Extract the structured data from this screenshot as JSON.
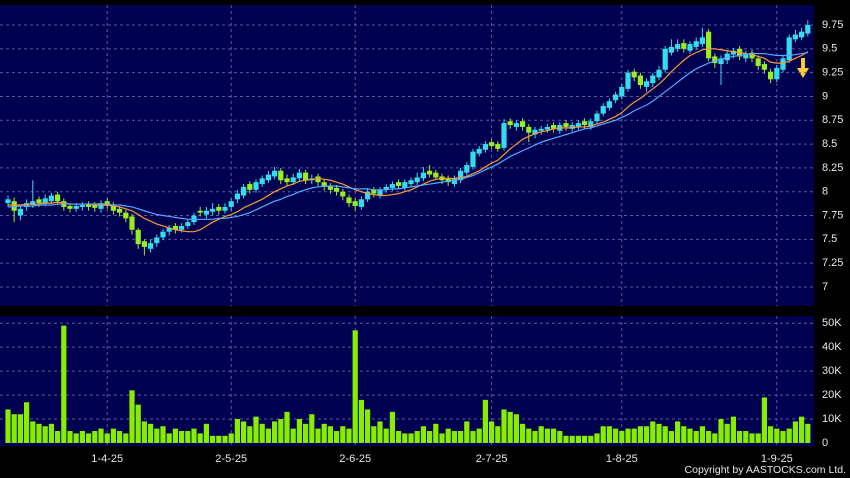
{
  "chart_data": {
    "type": "candlestick",
    "categories": [
      null,
      null,
      null,
      null,
      null,
      null,
      null,
      null,
      null,
      null,
      null,
      null,
      null,
      null,
      null,
      null,
      "1-4-25",
      null,
      null,
      null,
      null,
      null,
      null,
      null,
      null,
      null,
      null,
      null,
      null,
      null,
      null,
      null,
      null,
      null,
      null,
      null,
      "2-5-25",
      null,
      null,
      null,
      null,
      null,
      null,
      null,
      null,
      null,
      null,
      null,
      null,
      null,
      null,
      null,
      null,
      null,
      null,
      null,
      "2-6-25",
      null,
      null,
      null,
      null,
      null,
      null,
      null,
      null,
      null,
      null,
      null,
      null,
      null,
      null,
      null,
      null,
      null,
      null,
      null,
      null,
      null,
      "2-7-25",
      null,
      null,
      null,
      null,
      null,
      null,
      null,
      null,
      null,
      null,
      null,
      null,
      null,
      null,
      null,
      null,
      null,
      null,
      null,
      null,
      "1-8-25",
      null,
      null,
      null,
      null,
      null,
      null,
      null,
      null,
      null,
      null,
      null,
      null,
      null,
      null,
      null,
      null,
      null,
      null,
      null,
      null,
      null,
      null,
      null,
      null,
      "1-9-25",
      null,
      null,
      null,
      null,
      null
    ],
    "open": [
      7.88,
      7.9,
      7.75,
      7.84,
      7.86,
      7.92,
      7.88,
      7.9,
      7.97,
      7.9,
      7.85,
      7.82,
      7.84,
      7.87,
      7.86,
      7.82,
      7.9,
      7.86,
      7.82,
      7.78,
      7.74,
      7.6,
      7.48,
      7.4,
      7.46,
      7.52,
      7.58,
      7.64,
      7.6,
      7.64,
      7.68,
      7.8,
      7.76,
      7.79,
      7.84,
      7.8,
      7.84,
      7.92,
      7.96,
      8.08,
      8.02,
      8.08,
      8.12,
      8.16,
      8.22,
      8.14,
      8.1,
      8.14,
      8.2,
      8.12,
      8.16,
      8.1,
      8.06,
      8.04,
      8.0,
      7.94,
      7.9,
      7.84,
      7.92,
      8.02,
      7.96,
      8.02,
      8.04,
      8.1,
      8.04,
      8.08,
      8.1,
      8.14,
      8.22,
      8.2,
      8.16,
      8.14,
      8.08,
      8.12,
      8.2,
      8.26,
      8.4,
      8.44,
      8.52,
      8.5,
      8.46,
      8.74,
      8.68,
      8.74,
      8.68,
      8.6,
      8.64,
      8.65,
      8.7,
      8.64,
      8.72,
      8.66,
      8.68,
      8.74,
      8.68,
      8.74,
      8.82,
      8.88,
      8.96,
      9.0,
      9.08,
      9.26,
      9.22,
      9.1,
      9.14,
      9.2,
      9.28,
      9.46,
      9.5,
      9.56,
      9.48,
      9.52,
      9.55,
      9.68,
      9.42,
      9.34,
      9.38,
      9.44,
      9.5,
      9.4,
      9.46,
      9.4,
      9.34,
      9.26,
      9.18,
      9.28,
      9.38,
      9.6,
      9.62,
      9.66
    ],
    "high": [
      7.96,
      7.94,
      7.86,
      7.92,
      8.12,
      7.95,
      7.97,
      7.99,
      8.0,
      7.93,
      7.88,
      7.88,
      7.89,
      7.9,
      7.89,
      7.91,
      7.93,
      7.89,
      7.85,
      7.81,
      7.77,
      7.62,
      7.5,
      7.5,
      7.55,
      7.61,
      7.65,
      7.67,
      7.67,
      7.71,
      7.78,
      7.84,
      7.84,
      7.88,
      7.87,
      7.88,
      7.93,
      8.02,
      8.08,
      8.11,
      8.13,
      8.17,
      8.22,
      8.26,
      8.25,
      8.18,
      8.19,
      8.24,
      8.23,
      8.18,
      8.19,
      8.13,
      8.09,
      8.07,
      8.03,
      7.97,
      7.93,
      7.95,
      8.04,
      8.05,
      8.05,
      8.08,
      8.11,
      8.13,
      8.13,
      8.15,
      8.2,
      8.26,
      8.28,
      8.23,
      8.19,
      8.17,
      8.17,
      8.25,
      8.31,
      8.45,
      8.48,
      8.53,
      8.55,
      8.53,
      8.76,
      8.77,
      8.75,
      8.77,
      8.71,
      8.68,
      8.69,
      8.71,
      8.73,
      8.73,
      8.75,
      8.73,
      8.75,
      8.77,
      8.77,
      8.85,
      8.93,
      8.98,
      9.05,
      9.13,
      9.28,
      9.29,
      9.25,
      9.19,
      9.25,
      9.32,
      9.53,
      9.6,
      9.6,
      9.6,
      9.58,
      9.62,
      9.72,
      9.71,
      9.45,
      9.43,
      9.48,
      9.51,
      9.53,
      9.48,
      9.49,
      9.43,
      9.37,
      9.29,
      9.33,
      9.43,
      9.65,
      9.7,
      9.72,
      9.8
    ],
    "low": [
      7.84,
      7.68,
      7.7,
      7.8,
      7.83,
      7.84,
      7.85,
      7.87,
      7.86,
      7.8,
      7.78,
      7.79,
      7.8,
      7.8,
      7.79,
      7.78,
      7.82,
      7.76,
      7.74,
      7.68,
      7.55,
      7.4,
      7.33,
      7.36,
      7.42,
      7.49,
      7.54,
      7.56,
      7.57,
      7.61,
      7.65,
      7.74,
      7.72,
      7.75,
      7.76,
      7.77,
      7.8,
      7.88,
      7.93,
      7.98,
      7.99,
      8.05,
      8.09,
      8.13,
      8.08,
      8.06,
      8.07,
      8.1,
      8.08,
      8.08,
      8.06,
      8.01,
      7.98,
      7.96,
      7.91,
      7.84,
      7.8,
      7.81,
      7.89,
      7.94,
      7.93,
      7.99,
      8.01,
      8.03,
      8.01,
      8.05,
      8.07,
      8.11,
      8.15,
      8.12,
      8.08,
      8.06,
      8.05,
      8.09,
      8.17,
      8.23,
      8.37,
      8.41,
      8.45,
      8.42,
      8.43,
      8.66,
      8.64,
      8.64,
      8.52,
      8.56,
      8.6,
      8.62,
      8.62,
      8.61,
      8.64,
      8.63,
      8.65,
      8.66,
      8.65,
      8.71,
      8.79,
      8.85,
      8.93,
      8.97,
      9.05,
      9.16,
      9.08,
      9.05,
      9.1,
      9.17,
      9.25,
      9.43,
      9.47,
      9.46,
      9.45,
      9.49,
      9.52,
      9.37,
      9.3,
      9.12,
      9.34,
      9.4,
      9.38,
      9.36,
      9.36,
      9.28,
      9.24,
      9.14,
      9.15,
      9.25,
      9.35,
      9.57,
      9.59,
      9.63
    ],
    "close": [
      7.92,
      7.8,
      7.82,
      7.88,
      7.9,
      7.88,
      7.93,
      7.96,
      7.9,
      7.84,
      7.82,
      7.85,
      7.86,
      7.84,
      7.83,
      7.88,
      7.85,
      7.8,
      7.78,
      7.72,
      7.6,
      7.45,
      7.42,
      7.46,
      7.52,
      7.58,
      7.62,
      7.6,
      7.64,
      7.68,
      7.75,
      7.78,
      7.8,
      7.82,
      7.8,
      7.84,
      7.9,
      7.98,
      8.05,
      8.02,
      8.1,
      8.14,
      8.18,
      8.22,
      8.12,
      8.1,
      8.15,
      8.2,
      8.12,
      8.14,
      8.1,
      8.05,
      8.02,
      8.0,
      7.95,
      7.88,
      7.85,
      7.92,
      8.0,
      7.98,
      8.02,
      8.05,
      8.08,
      8.06,
      8.1,
      8.12,
      8.15,
      8.2,
      8.18,
      8.15,
      8.12,
      8.1,
      8.14,
      8.22,
      8.28,
      8.42,
      8.45,
      8.5,
      8.48,
      8.45,
      8.72,
      8.7,
      8.72,
      8.68,
      8.62,
      8.65,
      8.66,
      8.68,
      8.66,
      8.7,
      8.68,
      8.7,
      8.72,
      8.7,
      8.74,
      8.82,
      8.9,
      8.95,
      9.02,
      9.1,
      9.25,
      9.2,
      9.12,
      9.16,
      9.22,
      9.28,
      9.5,
      9.52,
      9.55,
      9.5,
      9.55,
      9.58,
      9.62,
      9.4,
      9.35,
      9.4,
      9.45,
      9.48,
      9.42,
      9.45,
      9.4,
      9.32,
      9.28,
      9.18,
      9.3,
      9.4,
      9.62,
      9.65,
      9.68,
      9.75
    ],
    "up_color": "#33ddee",
    "down_color": "#99ee22",
    "moving_averages": [
      {
        "color": "#ff9933",
        "values": [
          7.86,
          7.86,
          7.86,
          7.87,
          7.87,
          7.87,
          7.88,
          7.88,
          7.89,
          7.88,
          7.87,
          7.87,
          7.87,
          7.87,
          7.86,
          7.86,
          7.86,
          7.85,
          7.84,
          7.82,
          7.8,
          7.76,
          7.72,
          7.69,
          7.66,
          7.64,
          7.62,
          7.6,
          7.59,
          7.58,
          7.58,
          7.6,
          7.64,
          7.68,
          7.71,
          7.74,
          7.76,
          7.79,
          7.83,
          7.86,
          7.89,
          7.92,
          7.96,
          8.0,
          8.03,
          8.06,
          8.08,
          8.11,
          8.12,
          8.13,
          8.14,
          8.13,
          8.12,
          8.1,
          8.08,
          8.05,
          8.02,
          8.0,
          7.98,
          7.97,
          7.96,
          7.96,
          7.97,
          7.98,
          8.0,
          8.02,
          8.05,
          8.08,
          8.11,
          8.13,
          8.14,
          8.14,
          8.14,
          8.15,
          8.16,
          8.19,
          8.22,
          8.26,
          8.3,
          8.33,
          8.39,
          8.45,
          8.5,
          8.55,
          8.58,
          8.61,
          8.63,
          8.64,
          8.66,
          8.67,
          8.67,
          8.67,
          8.68,
          8.68,
          8.69,
          8.71,
          8.73,
          8.76,
          8.79,
          8.83,
          8.89,
          8.94,
          8.98,
          9.03,
          9.08,
          9.13,
          9.19,
          9.26,
          9.32,
          9.38,
          9.43,
          9.46,
          9.49,
          9.5,
          9.5,
          9.49,
          9.48,
          9.47,
          9.46,
          9.45,
          9.44,
          9.42,
          9.4,
          9.36,
          9.35,
          9.35,
          9.37,
          9.4,
          9.43,
          9.47
        ]
      },
      {
        "color": "#55aaff",
        "values": [
          7.84,
          7.84,
          7.85,
          7.85,
          7.85,
          7.86,
          7.86,
          7.86,
          7.87,
          7.87,
          7.87,
          7.87,
          7.87,
          7.87,
          7.87,
          7.87,
          7.87,
          7.86,
          7.86,
          7.85,
          7.84,
          7.82,
          7.8,
          7.78,
          7.76,
          7.75,
          7.74,
          7.73,
          7.72,
          7.71,
          7.71,
          7.71,
          7.71,
          7.71,
          7.72,
          7.72,
          7.73,
          7.74,
          7.76,
          7.78,
          7.81,
          7.84,
          7.87,
          7.9,
          7.92,
          7.95,
          7.97,
          8.0,
          8.02,
          8.04,
          8.05,
          8.06,
          8.06,
          8.06,
          8.05,
          8.04,
          8.03,
          8.03,
          8.03,
          8.02,
          8.02,
          8.02,
          8.03,
          8.03,
          8.04,
          8.05,
          8.06,
          8.07,
          8.08,
          8.09,
          8.1,
          8.11,
          8.12,
          8.13,
          8.15,
          8.17,
          8.2,
          8.23,
          8.26,
          8.29,
          8.33,
          8.37,
          8.4,
          8.43,
          8.46,
          8.49,
          8.52,
          8.54,
          8.56,
          8.58,
          8.6,
          8.62,
          8.64,
          8.66,
          8.67,
          8.69,
          8.71,
          8.73,
          8.75,
          8.78,
          8.81,
          8.85,
          8.88,
          8.91,
          8.95,
          9.0,
          9.05,
          9.1,
          9.15,
          9.2,
          9.25,
          9.29,
          9.32,
          9.35,
          9.37,
          9.39,
          9.41,
          9.42,
          9.43,
          9.44,
          9.45,
          9.45,
          9.45,
          9.44,
          9.43,
          9.43,
          9.43,
          9.44,
          9.45,
          9.46
        ]
      }
    ],
    "ylim": [
      6.8,
      9.96
    ],
    "yticks": [
      7,
      7.25,
      7.5,
      7.75,
      8,
      8.25,
      8.5,
      8.75,
      9,
      9.25,
      9.5,
      9.75
    ],
    "volume": {
      "color": "#88ee00",
      "values": [
        14000,
        12000,
        12000,
        17000,
        9000,
        8000,
        7000,
        8000,
        5000,
        49000,
        5000,
        4000,
        5000,
        4000,
        5000,
        6000,
        4000,
        6000,
        5000,
        4000,
        22000,
        16000,
        9000,
        8000,
        6000,
        7000,
        4000,
        6000,
        5000,
        5000,
        6000,
        4000,
        8000,
        3000,
        3000,
        3000,
        4000,
        10000,
        9000,
        7000,
        11000,
        8000,
        6000,
        9000,
        10000,
        13000,
        6000,
        10000,
        8000,
        12000,
        6000,
        8000,
        7000,
        5000,
        7000,
        6000,
        47000,
        18000,
        14000,
        7000,
        9000,
        6000,
        13000,
        5000,
        4000,
        4000,
        5000,
        7000,
        5000,
        8000,
        4000,
        6000,
        5000,
        5000,
        9000,
        5000,
        6000,
        18000,
        9000,
        7000,
        14000,
        13000,
        12000,
        8000,
        6000,
        5000,
        7000,
        6000,
        6000,
        5000,
        3000,
        3000,
        3000,
        3000,
        3000,
        4000,
        7000,
        7000,
        6000,
        5000,
        6000,
        6000,
        7000,
        7000,
        9000,
        8000,
        7000,
        5000,
        9000,
        7000,
        6000,
        5000,
        7000,
        5000,
        4000,
        10000,
        8000,
        11000,
        5000,
        5000,
        4000,
        4000,
        19000,
        7000,
        6000,
        5000,
        6000,
        9000,
        11000,
        8000
      ],
      "ylim": [
        0,
        53000
      ],
      "yticks": [
        {
          "value": 50000,
          "label": "50K"
        },
        {
          "value": 40000,
          "label": "40K"
        },
        {
          "value": 30000,
          "label": "30K"
        },
        {
          "value": 20000,
          "label": "20K"
        },
        {
          "value": 10000,
          "label": "10K"
        },
        0
      ]
    },
    "grid": true,
    "copyright": "Copyright by AASTOCKS.com Ltd."
  }
}
